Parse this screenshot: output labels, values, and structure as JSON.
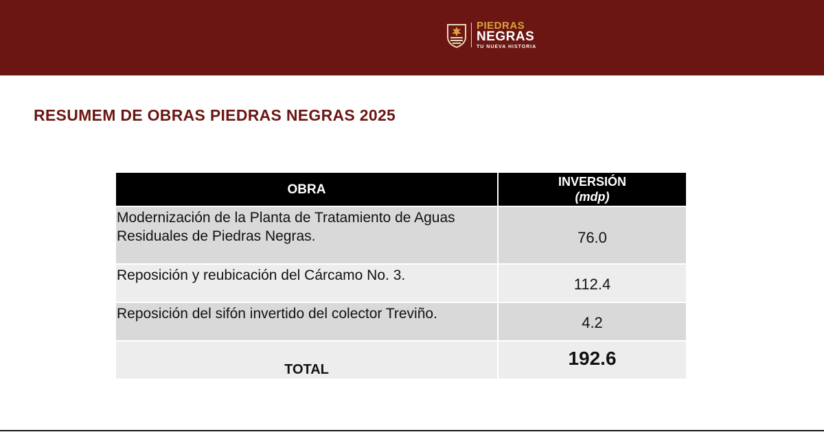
{
  "header": {
    "logo": {
      "word1": "PIEDRAS",
      "word2": "NEGRAS",
      "tagline": "TU NUEVA HISTORIA",
      "icon": "coat-of-arms-icon"
    },
    "colors": {
      "banner": "#6b1612",
      "logo_gold": "#d9a441",
      "title": "#6b1612"
    }
  },
  "main": {
    "title": "RESUMEM DE OBRAS PIEDRAS NEGRAS 2025",
    "table": {
      "columns": {
        "obra": "OBRA",
        "inversion": "INVERSIÓN",
        "inversion_unit": "(mdp)"
      },
      "rows": [
        {
          "obra_line1": "Modernización de la Planta de Tratamiento de Aguas",
          "obra_line2": "Residuales de Piedras Negras.",
          "inversion": "76.0"
        },
        {
          "obra": "Reposición y reubicación del Cárcamo No. 3.",
          "inversion": "112.4"
        },
        {
          "obra": "Reposición del sifón invertido del colector Treviño.",
          "inversion": "4.2"
        }
      ],
      "total": {
        "label": "TOTAL",
        "value": "192.6"
      }
    }
  }
}
